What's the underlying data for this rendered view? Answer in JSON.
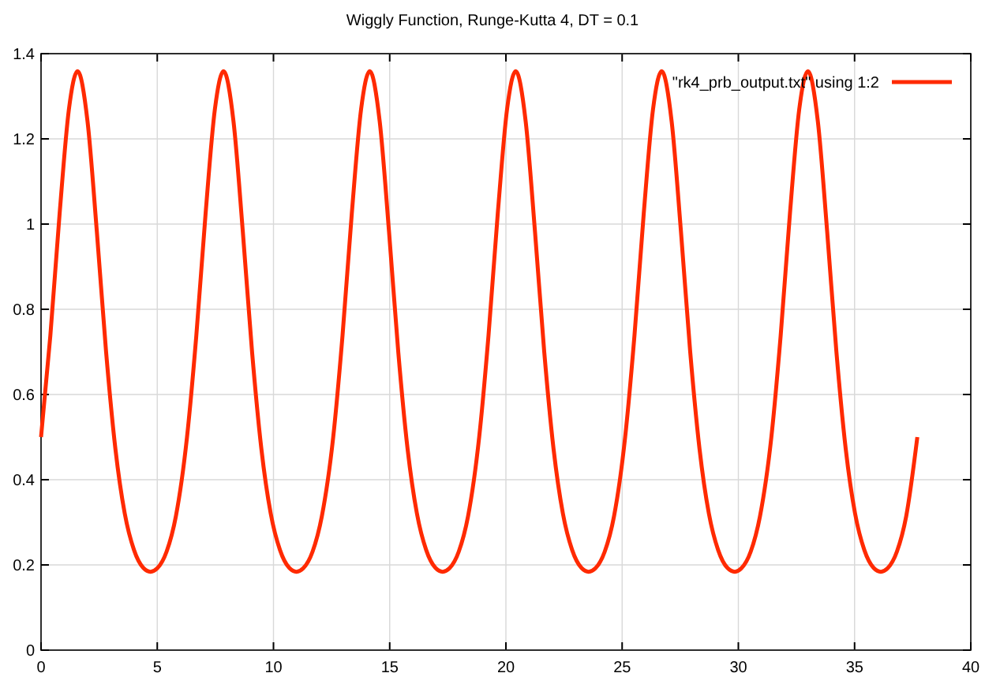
{
  "chart_data": {
    "type": "line",
    "title": "Wiggly Function, Runge-Kutta 4, DT = 0.1",
    "x": [
      0,
      0.4,
      0.8,
      1.2,
      1.57,
      2.0,
      2.4,
      2.8,
      3.2,
      3.6,
      4.0,
      4.4,
      4.71,
      5.0,
      5.4,
      5.8,
      6.28,
      6.68,
      7.08,
      7.48,
      7.85,
      8.28,
      8.68,
      9.08,
      9.48,
      9.88,
      10.28,
      10.68,
      10.99,
      11.28,
      11.68,
      12.08,
      12.57,
      12.97,
      13.37,
      13.77,
      14.14,
      14.57,
      14.97,
      15.37,
      15.77,
      16.17,
      16.57,
      16.97,
      17.28,
      17.57,
      17.97,
      18.37,
      18.85,
      19.25,
      19.65,
      20.05,
      20.42,
      20.85,
      21.25,
      21.65,
      22.05,
      22.45,
      22.85,
      23.25,
      23.56,
      23.85,
      24.25,
      24.65,
      25.13,
      25.53,
      25.93,
      26.33,
      26.7,
      27.13,
      27.53,
      27.93,
      28.33,
      28.73,
      29.13,
      29.53,
      29.85,
      30.13,
      30.53,
      30.93,
      31.42,
      31.82,
      32.22,
      32.62,
      32.99,
      33.42,
      33.82,
      34.22,
      34.62,
      35.02,
      35.42,
      35.82,
      36.13,
      36.42,
      36.82,
      37.22,
      37.7
    ],
    "series": [
      {
        "name": "\"rk4_prb_output.txt\" using 1:2",
        "color": "#ff2a00",
        "values": [
          0.5,
          0.738,
          1.025,
          1.27,
          1.359,
          1.241,
          0.983,
          0.699,
          0.472,
          0.321,
          0.235,
          0.193,
          0.184,
          0.192,
          0.231,
          0.314,
          0.5,
          0.738,
          1.025,
          1.27,
          1.359,
          1.241,
          0.983,
          0.699,
          0.472,
          0.321,
          0.235,
          0.193,
          0.184,
          0.192,
          0.231,
          0.314,
          0.5,
          0.738,
          1.025,
          1.27,
          1.359,
          1.241,
          0.983,
          0.699,
          0.472,
          0.321,
          0.235,
          0.193,
          0.184,
          0.192,
          0.231,
          0.314,
          0.5,
          0.738,
          1.025,
          1.27,
          1.359,
          1.241,
          0.983,
          0.699,
          0.472,
          0.321,
          0.235,
          0.193,
          0.184,
          0.192,
          0.231,
          0.314,
          0.5,
          0.738,
          1.025,
          1.27,
          1.359,
          1.241,
          0.983,
          0.699,
          0.472,
          0.321,
          0.235,
          0.193,
          0.184,
          0.192,
          0.231,
          0.314,
          0.5,
          0.738,
          1.025,
          1.27,
          1.359,
          1.241,
          0.983,
          0.699,
          0.472,
          0.321,
          0.235,
          0.193,
          0.184,
          0.192,
          0.231,
          0.314,
          0.5
        ]
      }
    ],
    "xlim": [
      0,
      40
    ],
    "xticks": [
      0,
      5,
      10,
      15,
      20,
      25,
      30,
      35,
      40
    ],
    "ylim": [
      0,
      1.4
    ],
    "yticks": [
      0,
      0.2,
      0.4,
      0.6,
      0.8,
      1,
      1.2,
      1.4
    ],
    "grid": true,
    "legend": "top right",
    "line_style": "solid",
    "marker": "none"
  }
}
